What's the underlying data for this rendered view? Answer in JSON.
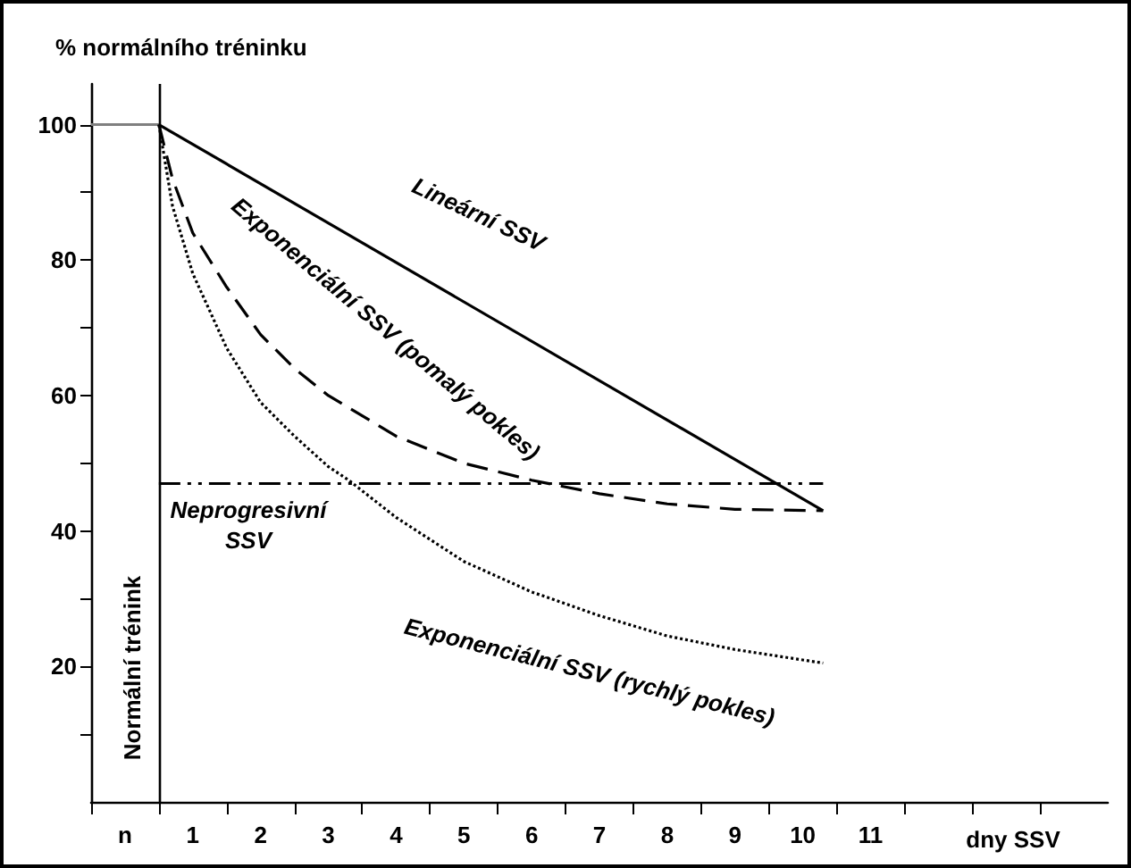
{
  "chart_data": {
    "type": "line",
    "ylabel": "% normálního tréninku",
    "xlabel": "dny SSV",
    "xlim": [
      -0.5,
      14.5
    ],
    "xticks": [
      {
        "value": -0.5,
        "label": null
      },
      {
        "value": 0,
        "label": "n"
      },
      {
        "value": 0.5,
        "label": null
      },
      1,
      {
        "value": 1.5,
        "label": null
      },
      2,
      {
        "value": 2.5,
        "label": null
      },
      3,
      {
        "value": 3.5,
        "label": null
      },
      4,
      {
        "value": 4.5,
        "label": null
      },
      5,
      {
        "value": 5.5,
        "label": null
      },
      6,
      {
        "value": 6.5,
        "label": null
      },
      7,
      {
        "value": 7.5,
        "label": null
      },
      8,
      {
        "value": 8.5,
        "label": null
      },
      9,
      {
        "value": 9.5,
        "label": null
      },
      10,
      {
        "value": 10.5,
        "label": null
      },
      11,
      {
        "value": 11.5,
        "label": null
      },
      {
        "value": 12.5,
        "label": null
      },
      {
        "value": 13.5,
        "label": null
      }
    ],
    "ylim": [
      0,
      106
    ],
    "yticks": [
      {
        "value": 10,
        "label": null
      },
      20,
      {
        "value": 30,
        "label": null
      },
      40,
      {
        "value": 50,
        "label": null
      },
      60,
      {
        "value": 70,
        "label": null
      },
      80,
      {
        "value": 90,
        "label": null
      },
      100
    ],
    "grid": false,
    "marker": "none",
    "series": [
      {
        "color": "#808080",
        "line_style": "solid",
        "x": [
          -0.5,
          0.5
        ],
        "values": [
          100,
          100
        ]
      },
      {
        "color": "#000000",
        "line_style": "solid",
        "x": [
          0.5,
          10.3
        ],
        "values": [
          100,
          43
        ]
      },
      {
        "color": "#000000",
        "line_style": "dashdot",
        "x": [
          0.5,
          10.3
        ],
        "values": [
          47,
          47
        ]
      },
      {
        "color": "#000000",
        "line_style": "dashed",
        "x": [
          0.5,
          0.7,
          1,
          1.5,
          2,
          2.5,
          3,
          4,
          5,
          6,
          7,
          8,
          9,
          10.3
        ],
        "values": [
          100,
          92,
          84,
          76,
          69,
          64,
          60,
          54,
          50,
          47.5,
          45.5,
          44,
          43.2,
          43
        ]
      },
      {
        "color": "#000000",
        "line_style": "dotted",
        "x": [
          0.5,
          0.7,
          1,
          1.5,
          2,
          2.5,
          3,
          3.3,
          4,
          5,
          6,
          7,
          8,
          9,
          10.3
        ],
        "values": [
          100,
          88,
          78,
          67,
          59,
          54,
          49.5,
          47.5,
          42,
          35.5,
          31,
          27.5,
          24.5,
          22.5,
          20.5
        ]
      }
    ],
    "ref_lines": [
      {
        "axis": "x",
        "value": 0.5,
        "color": "#000000",
        "line_style": "solid"
      }
    ],
    "annotations": [
      "Lineární SSV",
      "Exponenciální SSV (pomalý pokles)",
      "Neprogresivní\nSSV",
      "Exponenciální SSV (rychlý pokles)",
      "Normální trénink"
    ]
  }
}
